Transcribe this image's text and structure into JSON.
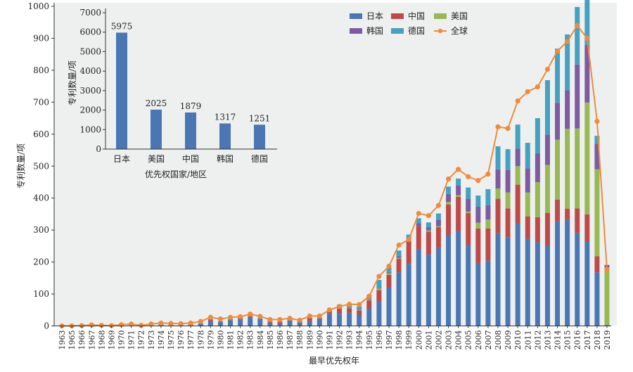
{
  "chart_data": [
    {
      "type": "bar+line",
      "stacked": true,
      "title": "",
      "xlabel": "最早优先权年",
      "ylabel": "专利数量/项",
      "ylim": [
        0,
        1000
      ],
      "yticks": [
        0,
        100,
        200,
        300,
        400,
        500,
        600,
        700,
        800,
        900,
        1000
      ],
      "grid": false,
      "legend_position": "top-right",
      "categories": [
        "1963",
        "1965",
        "1966",
        "1967",
        "1968",
        "1969",
        "1970",
        "1971",
        "1972",
        "1973",
        "1974",
        "1975",
        "1976",
        "1977",
        "1978",
        "1979",
        "1980",
        "1981",
        "1982",
        "1983",
        "1984",
        "1985",
        "1986",
        "1987",
        "1988",
        "1989",
        "1990",
        "1991",
        "1992",
        "1993",
        "1994",
        "1995",
        "1996",
        "1997",
        "1998",
        "1999",
        "2000",
        "2001",
        "2002",
        "2003",
        "2004",
        "2005",
        "2006",
        "2007",
        "2008",
        "2009",
        "2010",
        "2011",
        "2012",
        "2013",
        "2014",
        "2015",
        "2016",
        "2017",
        "2018",
        "2019"
      ],
      "series": [
        {
          "name": "日本",
          "kind": "bar",
          "color": "#4a77b4",
          "values": [
            0,
            0,
            0,
            2,
            1,
            0,
            2,
            3,
            1,
            3,
            5,
            4,
            4,
            5,
            8,
            15,
            12,
            18,
            20,
            25,
            22,
            10,
            8,
            18,
            12,
            16,
            22,
            38,
            38,
            42,
            33,
            55,
            77,
            120,
            168,
            194,
            240,
            223,
            244,
            285,
            297,
            253,
            197,
            205,
            290,
            278,
            320,
            273,
            262,
            252,
            327,
            332,
            290,
            264,
            168,
            3
          ]
        },
        {
          "name": "中国",
          "kind": "bar",
          "color": "#bd4a48",
          "values": [
            0,
            0,
            0,
            0,
            0,
            0,
            0,
            0,
            0,
            0,
            2,
            0,
            0,
            0,
            0,
            5,
            2,
            2,
            4,
            5,
            0,
            3,
            5,
            4,
            1,
            10,
            2,
            10,
            17,
            13,
            15,
            25,
            35,
            40,
            42,
            72,
            72,
            72,
            65,
            95,
            107,
            100,
            108,
            100,
            108,
            90,
            122,
            70,
            78,
            102,
            68,
            35,
            78,
            85,
            50,
            0
          ]
        },
        {
          "name": "美国",
          "kind": "bar",
          "color": "#97b853",
          "values": [
            0,
            0,
            0,
            0,
            0,
            0,
            0,
            0,
            0,
            0,
            0,
            0,
            0,
            0,
            0,
            0,
            0,
            0,
            0,
            0,
            0,
            2,
            1,
            0,
            0,
            0,
            0,
            2,
            2,
            2,
            0,
            2,
            5,
            5,
            3,
            5,
            0,
            4,
            3,
            8,
            5,
            5,
            18,
            28,
            32,
            50,
            58,
            75,
            110,
            150,
            188,
            250,
            250,
            350,
            272,
            180
          ]
        },
        {
          "name": "韩国",
          "kind": "bar",
          "color": "#7c5ba0",
          "values": [
            0,
            0,
            0,
            0,
            0,
            0,
            0,
            0,
            0,
            0,
            0,
            0,
            0,
            0,
            0,
            0,
            0,
            0,
            0,
            0,
            0,
            0,
            0,
            0,
            0,
            0,
            0,
            1,
            2,
            2,
            1,
            2,
            2,
            3,
            5,
            5,
            10,
            10,
            20,
            25,
            30,
            40,
            50,
            45,
            60,
            70,
            55,
            75,
            90,
            95,
            115,
            120,
            200,
            180,
            80,
            8
          ]
        },
        {
          "name": "德国",
          "kind": "bar",
          "color": "#44a2c0",
          "values": [
            0,
            0,
            0,
            0,
            0,
            0,
            0,
            0,
            0,
            0,
            0,
            0,
            0,
            0,
            0,
            1,
            1,
            2,
            2,
            3,
            2,
            2,
            1,
            1,
            1,
            1,
            2,
            3,
            8,
            8,
            12,
            10,
            25,
            15,
            18,
            10,
            15,
            15,
            20,
            23,
            22,
            35,
            35,
            50,
            72,
            65,
            75,
            80,
            110,
            170,
            170,
            175,
            180,
            185,
            25,
            0
          ]
        },
        {
          "name": "全球",
          "kind": "line",
          "color": "#ee8c3d",
          "values": [
            0,
            0,
            1,
            3,
            2,
            1,
            4,
            6,
            2,
            6,
            9,
            8,
            7,
            9,
            14,
            27,
            22,
            27,
            29,
            37,
            30,
            20,
            20,
            24,
            18,
            31,
            31,
            50,
            61,
            68,
            67,
            93,
            155,
            187,
            253,
            270,
            352,
            345,
            377,
            460,
            490,
            467,
            455,
            475,
            623,
            618,
            704,
            733,
            748,
            803,
            860,
            890,
            940,
            900,
            640,
            175
          ]
        }
      ]
    },
    {
      "type": "bar",
      "title": "",
      "xlabel": "优先权国家/地区",
      "ylabel": "专利数量/项",
      "ylim": [
        0,
        7000
      ],
      "yticks": [
        0,
        1000,
        2000,
        3000,
        4000,
        5000,
        6000,
        7000
      ],
      "categories": [
        "日本",
        "美国",
        "中国",
        "韩国",
        "德国"
      ],
      "values": [
        5975,
        2025,
        1879,
        1317,
        1251
      ],
      "data_labels": [
        "5975",
        "2025",
        "1879",
        "1317",
        "1251"
      ],
      "color": "#4a77b4"
    }
  ]
}
